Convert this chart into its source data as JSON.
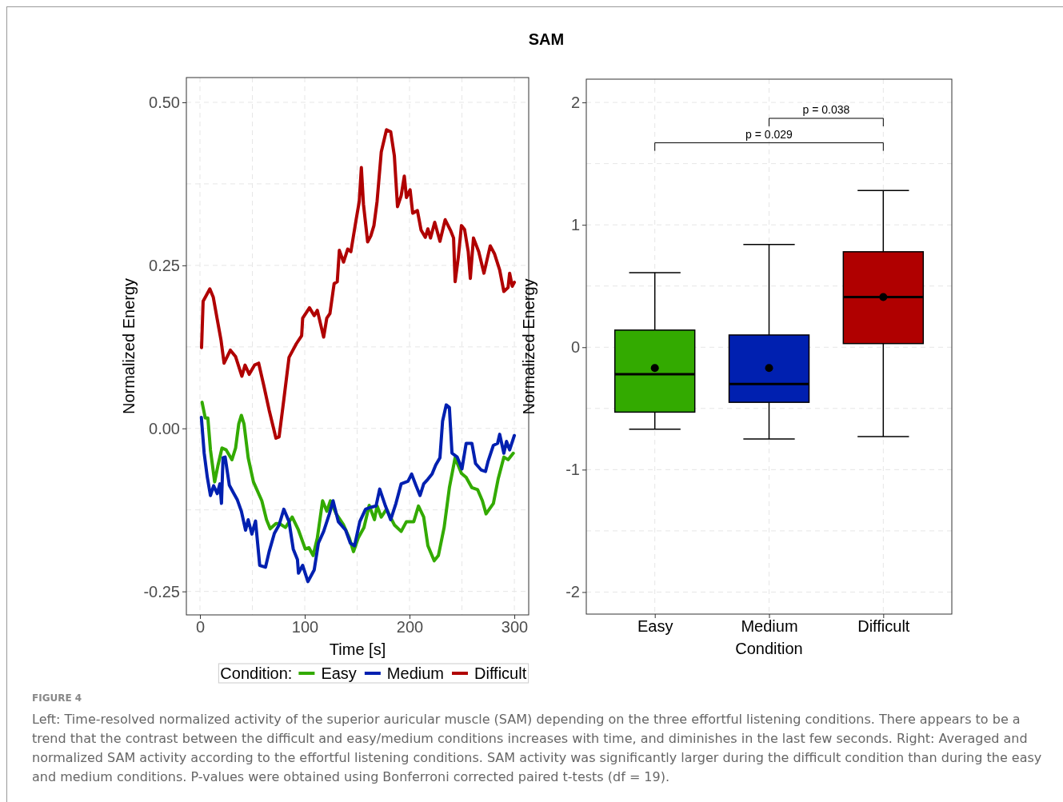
{
  "chart_data": [
    {
      "type": "line",
      "title": "SAM",
      "xlabel": "Time [s]",
      "ylabel": "Normalized Energy",
      "legend_title": "Condition:",
      "legend": "bottom",
      "grid": true,
      "line_style": "solid",
      "xlim": [
        -13,
        313.7
      ],
      "ylim": [
        -0.286,
        0.538
      ],
      "xticks": [
        0,
        100,
        200,
        300
      ],
      "yticks": [
        {
          "value": -0.25,
          "label": "-0.25"
        },
        {
          "value": 0,
          "label": "0.00"
        },
        {
          "value": 0.25,
          "label": "0.25"
        },
        {
          "value": 0.5,
          "label": "0.50"
        }
      ],
      "annotations": [
        "FIGURE 4",
        "Left: Time-resolved normalized activity of the superior auricular muscle (SAM) depending on the three effortful listening conditions. There appears to be a trend that the contrast between the difficult and easy/medium conditions increases with time, and diminishes in the last few seconds. Right: Averaged and normalized SAM activity according to the effortful listening conditions. SAM activity was significantly larger during the difficult condition than during the easy and medium conditions. P-values were obtained using Bonferroni corrected paired t-tests (df = 19)."
      ],
      "series": [
        {
          "name": "Easy",
          "color": "#33aa00",
          "x": [
            2,
            5,
            7.5,
            10,
            14,
            17,
            21,
            25,
            30.5,
            34,
            37,
            39.5,
            42,
            46,
            51,
            59,
            63.5,
            67,
            72.5,
            76,
            81.5,
            88,
            94,
            100.5,
            104,
            108,
            112,
            117,
            121,
            124.5,
            130,
            137,
            142.5,
            146.5,
            151,
            156.5,
            161.5,
            166.5,
            169,
            173,
            178,
            185.5,
            192,
            197,
            204,
            208.5,
            213.5,
            217.5,
            223.5,
            227.5,
            233,
            238,
            243.5,
            249.5,
            254,
            259.5,
            265,
            269.5,
            273,
            280,
            284.5,
            290,
            294,
            299
          ],
          "values": [
            0.04,
            0.016,
            0.016,
            -0.033,
            -0.082,
            -0.058,
            -0.03,
            -0.033,
            -0.048,
            -0.03,
            0.007,
            0.02,
            0.007,
            -0.045,
            -0.082,
            -0.111,
            -0.14,
            -0.154,
            -0.146,
            -0.146,
            -0.152,
            -0.136,
            -0.156,
            -0.185,
            -0.183,
            -0.195,
            -0.168,
            -0.111,
            -0.127,
            -0.111,
            -0.131,
            -0.148,
            -0.168,
            -0.189,
            -0.168,
            -0.152,
            -0.118,
            -0.14,
            -0.119,
            -0.136,
            -0.124,
            -0.148,
            -0.158,
            -0.143,
            -0.143,
            -0.119,
            -0.136,
            -0.18,
            -0.203,
            -0.195,
            -0.152,
            -0.091,
            -0.045,
            -0.069,
            -0.075,
            -0.091,
            -0.094,
            -0.111,
            -0.131,
            -0.115,
            -0.078,
            -0.044,
            -0.048,
            -0.038
          ]
        },
        {
          "name": "Medium",
          "color": "#0020b0",
          "x": [
            1.3,
            4,
            7,
            10,
            13,
            16.5,
            19,
            20.5,
            22,
            24,
            28,
            32,
            35.5,
            39.5,
            43.5,
            46,
            49.5,
            53,
            57,
            62.5,
            66,
            71,
            75.5,
            80,
            85,
            89,
            93,
            94,
            98,
            103,
            109,
            113,
            118,
            123.5,
            127,
            132,
            139,
            143.5,
            147.5,
            152.5,
            158,
            163,
            168,
            171.5,
            177,
            182,
            187,
            192,
            198.5,
            202,
            206,
            210,
            213.5,
            217.5,
            221.5,
            225,
            229,
            231.5,
            235,
            238,
            240.5,
            245.5,
            250,
            254,
            259.5,
            263,
            268.5,
            272.5,
            275,
            280,
            284,
            286,
            290,
            292.5,
            295.5,
            300
          ],
          "values": [
            0.017,
            -0.038,
            -0.075,
            -0.103,
            -0.088,
            -0.1,
            -0.085,
            -0.115,
            -0.045,
            -0.044,
            -0.087,
            -0.099,
            -0.109,
            -0.127,
            -0.156,
            -0.14,
            -0.162,
            -0.142,
            -0.21,
            -0.213,
            -0.189,
            -0.161,
            -0.148,
            -0.124,
            -0.143,
            -0.185,
            -0.201,
            -0.222,
            -0.21,
            -0.235,
            -0.217,
            -0.176,
            -0.158,
            -0.131,
            -0.111,
            -0.143,
            -0.156,
            -0.176,
            -0.18,
            -0.143,
            -0.124,
            -0.121,
            -0.119,
            -0.093,
            -0.119,
            -0.14,
            -0.115,
            -0.085,
            -0.081,
            -0.07,
            -0.087,
            -0.103,
            -0.085,
            -0.078,
            -0.07,
            -0.056,
            -0.045,
            0.011,
            0.036,
            0.032,
            -0.038,
            -0.044,
            -0.062,
            -0.023,
            -0.023,
            -0.054,
            -0.064,
            -0.066,
            -0.05,
            -0.026,
            -0.023,
            -0.009,
            -0.038,
            -0.02,
            -0.033,
            -0.011
          ]
        },
        {
          "name": "Difficult",
          "color": "#b00000",
          "x": [
            1.5,
            3,
            9.4,
            12.7,
            16.5,
            20,
            23,
            29,
            34,
            40,
            43,
            47,
            52,
            56,
            61,
            66,
            72.5,
            75.5,
            80,
            85,
            92,
            97,
            98,
            104.5,
            109,
            112,
            118,
            121,
            124,
            128,
            131,
            133,
            137,
            141,
            144,
            149,
            152,
            154,
            156,
            160,
            163,
            166,
            169,
            173,
            178,
            182,
            185.5,
            188.5,
            192,
            195,
            197,
            200.5,
            203,
            207.5,
            211,
            215,
            217.5,
            220,
            224,
            229,
            234,
            239,
            242,
            243.5,
            246.5,
            249.5,
            252.5,
            256,
            258,
            261,
            266,
            271,
            277,
            281,
            286,
            290,
            294,
            295.5,
            298,
            300
          ],
          "values": [
            0.124,
            0.195,
            0.214,
            0.201,
            0.167,
            0.136,
            0.1,
            0.12,
            0.11,
            0.08,
            0.097,
            0.083,
            0.097,
            0.1,
            0.065,
            0.028,
            -0.015,
            -0.013,
            0.044,
            0.109,
            0.13,
            0.142,
            0.169,
            0.185,
            0.173,
            0.181,
            0.14,
            0.169,
            0.176,
            0.222,
            0.225,
            0.273,
            0.255,
            0.275,
            0.271,
            0.32,
            0.348,
            0.4,
            0.344,
            0.286,
            0.295,
            0.311,
            0.348,
            0.424,
            0.458,
            0.455,
            0.418,
            0.34,
            0.357,
            0.387,
            0.354,
            0.366,
            0.33,
            0.334,
            0.304,
            0.293,
            0.306,
            0.292,
            0.316,
            0.287,
            0.32,
            0.304,
            0.292,
            0.225,
            0.262,
            0.311,
            0.305,
            0.271,
            0.23,
            0.292,
            0.271,
            0.238,
            0.28,
            0.268,
            0.243,
            0.21,
            0.216,
            0.238,
            0.218,
            0.224
          ]
        }
      ]
    },
    {
      "type": "box",
      "xlabel": "Condition",
      "ylabel": "Normalized Energy",
      "grid": true,
      "categories": [
        "Easy",
        "Medium",
        "Difficult"
      ],
      "colors": [
        "#33aa00",
        "#0020b0",
        "#b00000"
      ],
      "ylim": [
        -2.18,
        2.19
      ],
      "yticks": [
        -2,
        -1,
        0,
        1,
        2
      ],
      "annotations": [
        "p = 0.029",
        "p = 0.038"
      ],
      "boxes": [
        {
          "low": -0.67,
          "q1": -0.53,
          "median": -0.22,
          "q3": 0.14,
          "high": 0.61,
          "mean": -0.17
        },
        {
          "low": -0.75,
          "q1": -0.45,
          "median": -0.3,
          "q3": 0.1,
          "high": 0.84,
          "mean": -0.17
        },
        {
          "low": -0.73,
          "q1": 0.03,
          "median": 0.41,
          "q3": 0.78,
          "high": 1.28,
          "mean": 0.41
        }
      ]
    }
  ]
}
